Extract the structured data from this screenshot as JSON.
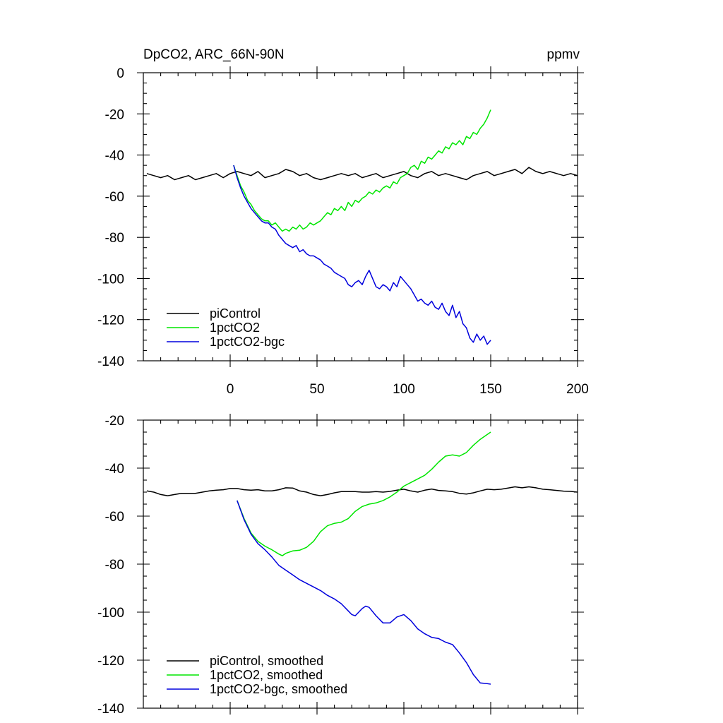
{
  "title_left": "DpCO2, ARC_66N-90N",
  "title_right": "ppmv",
  "colors": {
    "piControl": "#000000",
    "1pctCO2": "#00e600",
    "1pctCO2-bgc": "#0000dd"
  },
  "chart_data": [
    {
      "type": "line",
      "title": "DpCO2, ARC_66N-90N",
      "unit": "ppmv",
      "xlim": [
        -50,
        200
      ],
      "ylim": [
        -140,
        0
      ],
      "x_ticks": [
        0,
        50,
        100,
        150,
        200
      ],
      "x_tick_labels": [
        "0",
        "50",
        "100",
        "150",
        "200"
      ],
      "y_ticks": [
        0,
        -20,
        -40,
        -60,
        -80,
        -100,
        -120,
        -140
      ],
      "y_tick_labels": [
        "0",
        "-20",
        "-40",
        "-60",
        "-80",
        "-100",
        "-120",
        "-140"
      ],
      "grid": false,
      "legend_position": "bottom-left",
      "series": [
        {
          "name": "piControl",
          "color": "#000000",
          "x": [
            -48,
            -44,
            -40,
            -36,
            -32,
            -28,
            -24,
            -20,
            -16,
            -12,
            -8,
            -4,
            0,
            4,
            8,
            12,
            16,
            20,
            24,
            28,
            32,
            36,
            40,
            44,
            48,
            52,
            56,
            60,
            64,
            68,
            72,
            76,
            80,
            84,
            88,
            92,
            96,
            100,
            104,
            108,
            112,
            116,
            120,
            124,
            128,
            132,
            136,
            140,
            144,
            148,
            152,
            156,
            160,
            164,
            168,
            172,
            176,
            180,
            184,
            188,
            192,
            196,
            200
          ],
          "y": [
            -49,
            -50,
            -51,
            -50,
            -52,
            -51,
            -50,
            -52,
            -51,
            -50,
            -49,
            -51,
            -49,
            -48,
            -49,
            -50,
            -48,
            -51,
            -50,
            -49,
            -47,
            -48,
            -50,
            -49,
            -51,
            -52,
            -51,
            -50,
            -49,
            -50,
            -49,
            -51,
            -50,
            -49,
            -51,
            -50,
            -49,
            -48,
            -50,
            -51,
            -49,
            -48,
            -50,
            -49,
            -50,
            -51,
            -52,
            -50,
            -49,
            -48,
            -50,
            -49,
            -48,
            -47,
            -49,
            -46,
            -48,
            -49,
            -48,
            -49,
            -50,
            -49,
            -50
          ]
        },
        {
          "name": "1pctCO2",
          "color": "#00e600",
          "x": [
            2,
            4,
            6,
            8,
            10,
            12,
            14,
            16,
            18,
            20,
            22,
            24,
            26,
            28,
            30,
            32,
            34,
            36,
            38,
            40,
            42,
            44,
            46,
            48,
            50,
            52,
            54,
            56,
            58,
            60,
            62,
            64,
            66,
            68,
            70,
            72,
            74,
            76,
            78,
            80,
            82,
            84,
            86,
            88,
            90,
            92,
            94,
            96,
            98,
            100,
            102,
            104,
            106,
            108,
            110,
            112,
            114,
            116,
            118,
            120,
            122,
            124,
            126,
            128,
            130,
            132,
            134,
            136,
            138,
            140,
            142,
            144,
            146,
            148,
            150
          ],
          "y": [
            -45,
            -50,
            -55,
            -58,
            -62,
            -64,
            -67,
            -69,
            -71,
            -72,
            -72,
            -74,
            -73,
            -75,
            -77,
            -76,
            -77,
            -75,
            -76,
            -74,
            -76,
            -75,
            -73,
            -74,
            -73,
            -72,
            -70,
            -68,
            -69,
            -66,
            -67,
            -65,
            -67,
            -63,
            -65,
            -62,
            -63,
            -61,
            -60,
            -58,
            -59,
            -57,
            -58,
            -56,
            -55,
            -56,
            -53,
            -54,
            -51,
            -50,
            -49,
            -46,
            -45,
            -47,
            -43,
            -44,
            -41,
            -42,
            -40,
            -38,
            -39,
            -36,
            -37,
            -34,
            -35,
            -33,
            -35,
            -31,
            -32,
            -29,
            -30,
            -27,
            -25,
            -22,
            -18
          ]
        },
        {
          "name": "1pctCO2-bgc",
          "color": "#0000dd",
          "x": [
            2,
            4,
            6,
            8,
            10,
            12,
            14,
            16,
            18,
            20,
            22,
            24,
            26,
            28,
            30,
            32,
            34,
            36,
            38,
            40,
            42,
            44,
            46,
            48,
            50,
            52,
            54,
            56,
            58,
            60,
            62,
            64,
            66,
            68,
            70,
            72,
            74,
            76,
            78,
            80,
            82,
            84,
            86,
            88,
            90,
            92,
            94,
            96,
            98,
            100,
            102,
            104,
            106,
            108,
            110,
            112,
            114,
            116,
            118,
            120,
            122,
            124,
            126,
            128,
            130,
            132,
            134,
            136,
            138,
            140,
            142,
            144,
            146,
            148,
            150
          ],
          "y": [
            -45,
            -51,
            -56,
            -60,
            -63,
            -66,
            -68,
            -70,
            -72,
            -73,
            -73,
            -75,
            -76,
            -79,
            -81,
            -83,
            -84,
            -85,
            -84,
            -87,
            -86,
            -88,
            -89,
            -89,
            -90,
            -91,
            -93,
            -94,
            -95,
            -97,
            -98,
            -99,
            -100,
            -103,
            -104,
            -102,
            -101,
            -103,
            -99,
            -96,
            -100,
            -104,
            -105,
            -103,
            -104,
            -106,
            -102,
            -104,
            -99,
            -101,
            -103,
            -105,
            -108,
            -111,
            -110,
            -112,
            -113,
            -111,
            -114,
            -115,
            -112,
            -116,
            -118,
            -113,
            -119,
            -116,
            -122,
            -124,
            -129,
            -131,
            -127,
            -130,
            -128,
            -132,
            -130
          ]
        }
      ]
    },
    {
      "type": "line",
      "xlim": [
        -50,
        200
      ],
      "ylim": [
        -140,
        -20
      ],
      "y_ticks": [
        -20,
        -40,
        -60,
        -80,
        -100,
        -120,
        -140
      ],
      "y_tick_labels": [
        "-20",
        "-40",
        "-60",
        "-80",
        "-100",
        "-120",
        "-140"
      ],
      "grid": false,
      "legend_position": "bottom-left",
      "series": [
        {
          "name": "piControl, smoothed",
          "color": "#000000",
          "x": [
            -48,
            -44,
            -40,
            -36,
            -32,
            -28,
            -24,
            -20,
            -16,
            -12,
            -8,
            -4,
            0,
            4,
            8,
            12,
            16,
            20,
            24,
            28,
            32,
            36,
            40,
            44,
            48,
            52,
            56,
            60,
            64,
            68,
            72,
            76,
            80,
            84,
            88,
            92,
            96,
            100,
            104,
            108,
            112,
            116,
            120,
            124,
            128,
            132,
            136,
            140,
            144,
            148,
            152,
            156,
            160,
            164,
            168,
            172,
            176,
            180,
            184,
            188,
            192,
            196,
            200
          ],
          "y": [
            -49.5,
            -50,
            -51,
            -51.5,
            -51,
            -50.5,
            -50.5,
            -50.5,
            -50,
            -49.5,
            -49.2,
            -49,
            -48.5,
            -48.5,
            -49,
            -49.2,
            -49,
            -49.5,
            -49.5,
            -49,
            -48.2,
            -48.3,
            -49.5,
            -50,
            -51,
            -51.5,
            -51,
            -50.3,
            -49.8,
            -49.8,
            -49.8,
            -50,
            -50,
            -49.8,
            -50,
            -49.7,
            -49.2,
            -48.8,
            -49.5,
            -50,
            -49.2,
            -48.7,
            -49.3,
            -49.5,
            -49.8,
            -50.5,
            -50.8,
            -50.3,
            -49.5,
            -48.8,
            -49,
            -48.8,
            -48.3,
            -47.8,
            -48.2,
            -47.8,
            -48.2,
            -48.8,
            -49,
            -49.3,
            -49.6,
            -49.7,
            -50
          ]
        },
        {
          "name": "1pctCO2, smoothed",
          "color": "#00e600",
          "x": [
            4,
            8,
            12,
            16,
            20,
            24,
            28,
            30,
            32,
            36,
            40,
            44,
            48,
            52,
            56,
            60,
            64,
            68,
            72,
            76,
            80,
            84,
            88,
            92,
            96,
            100,
            104,
            108,
            112,
            116,
            120,
            124,
            128,
            132,
            136,
            140,
            144,
            148,
            150
          ],
          "y": [
            -53.5,
            -61,
            -67,
            -70.5,
            -72.5,
            -74,
            -75.8,
            -76.5,
            -75.5,
            -74.5,
            -74.2,
            -73,
            -70.5,
            -66.5,
            -64,
            -63,
            -62.5,
            -61,
            -58,
            -56,
            -55,
            -54.5,
            -53.5,
            -52,
            -50,
            -47.5,
            -46,
            -44.5,
            -43,
            -40.5,
            -37.5,
            -35,
            -34.5,
            -35,
            -33.5,
            -30.5,
            -28,
            -26,
            -25
          ]
        },
        {
          "name": "1pctCO2-bgc, smoothed",
          "color": "#0000dd",
          "x": [
            4,
            8,
            12,
            16,
            20,
            24,
            28,
            32,
            36,
            40,
            44,
            48,
            52,
            56,
            60,
            64,
            68,
            70,
            72,
            76,
            78,
            80,
            84,
            88,
            92,
            96,
            100,
            104,
            108,
            112,
            116,
            120,
            124,
            128,
            132,
            136,
            140,
            144,
            148,
            150
          ],
          "y": [
            -53.5,
            -61.5,
            -67.5,
            -71.5,
            -74,
            -77,
            -80.5,
            -82.5,
            -84.5,
            -86.5,
            -88,
            -89.5,
            -91,
            -93,
            -94.5,
            -96.5,
            -99.5,
            -101,
            -101.5,
            -98.5,
            -97.5,
            -98,
            -101.5,
            -104.5,
            -104.5,
            -102,
            -101,
            -103.5,
            -107,
            -109,
            -110.5,
            -111,
            -112.5,
            -113.5,
            -117,
            -121,
            -126,
            -129.5,
            -129.8,
            -130
          ]
        }
      ]
    }
  ]
}
